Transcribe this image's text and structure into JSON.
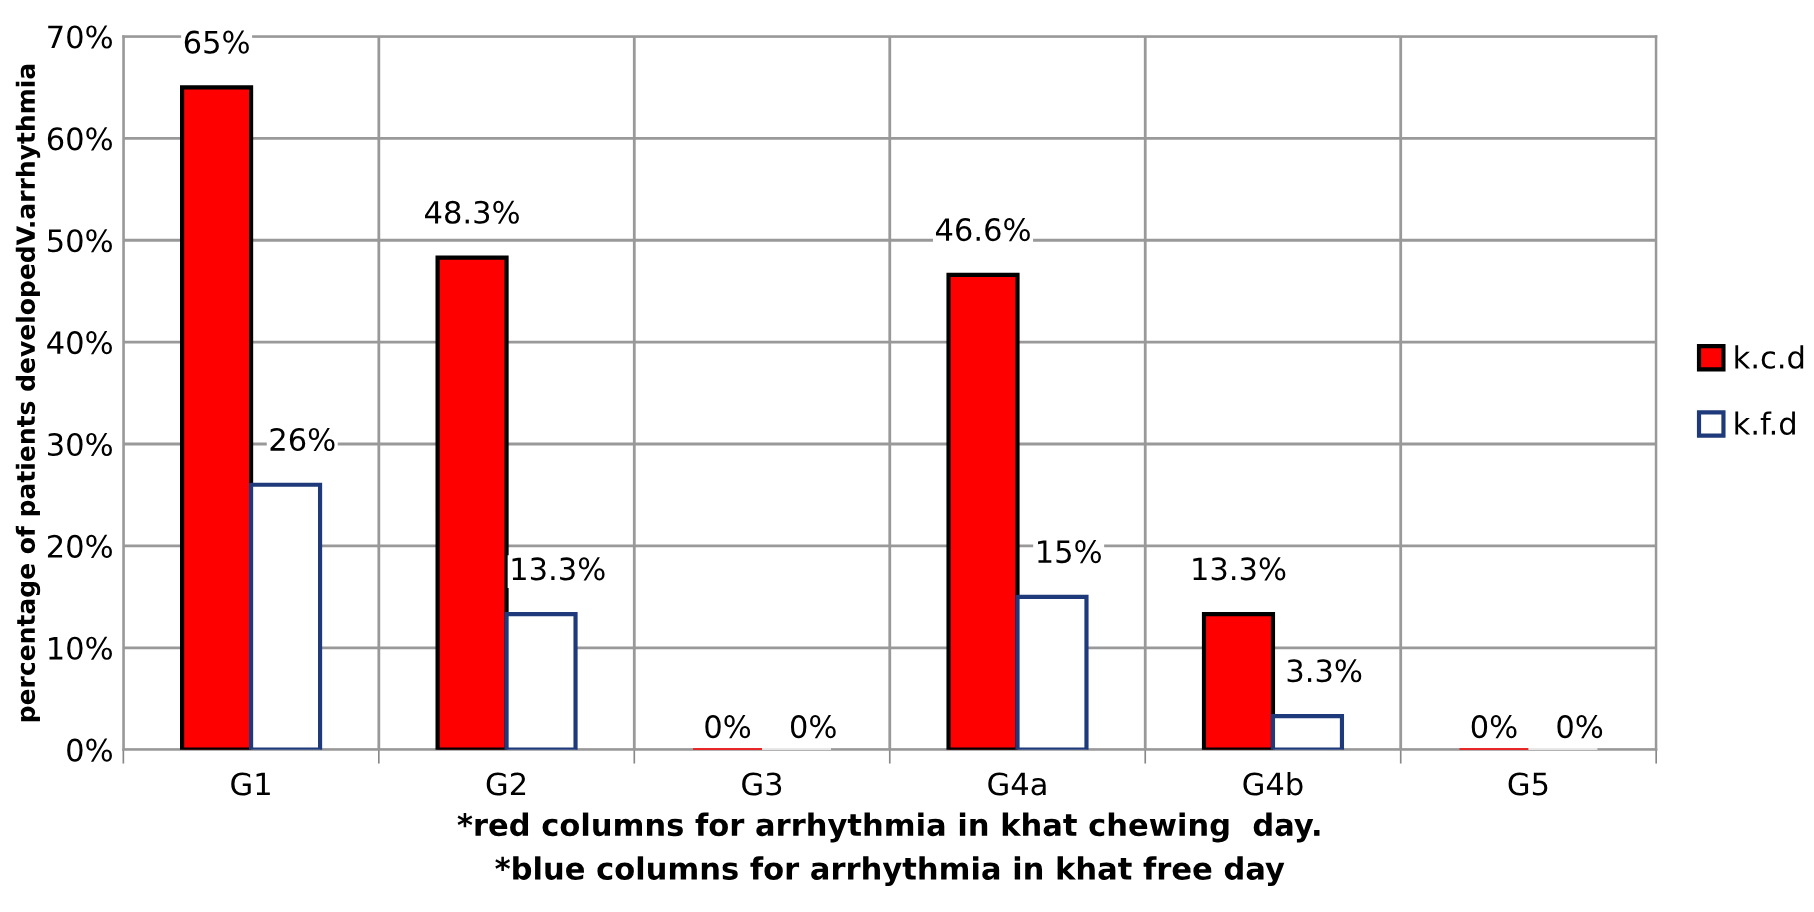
{
  "chart_data": {
    "type": "bar",
    "categories": [
      "G1",
      "G2",
      "G3",
      "G4a",
      "G4b",
      "G5"
    ],
    "series": [
      {
        "name": "k.c.d",
        "color": "#ff0000",
        "values": [
          65,
          48.3,
          0,
          46.6,
          13.3,
          0
        ],
        "value_labels": [
          "65%",
          "48.3%",
          "0%",
          "46.6%",
          "13.3%",
          "0%"
        ]
      },
      {
        "name": "k.f.d",
        "color": "#ffffff",
        "values": [
          26,
          13.3,
          0,
          15,
          3.3,
          0
        ],
        "value_labels": [
          "26%",
          "13.3%",
          "0%",
          "15%",
          "3.3%",
          "0%"
        ]
      }
    ],
    "ylabel": "percentage of patients developedV.arrhythmia",
    "xlabel": "*red columns for arrhythmia in khat chewing  day.\n*blue columns for arrhythmia in khat free day",
    "ylim": [
      0,
      70
    ],
    "yticks": [
      {
        "value": 0,
        "label": "0%"
      },
      {
        "value": 10,
        "label": "10%"
      },
      {
        "value": 20,
        "label": "20%"
      },
      {
        "value": 30,
        "label": "30%"
      },
      {
        "value": 40,
        "label": "40%"
      },
      {
        "value": 50,
        "label": "50%"
      },
      {
        "value": 60,
        "label": "60%"
      },
      {
        "value": 70,
        "label": "70%"
      }
    ],
    "grid": true,
    "legend": "right"
  }
}
